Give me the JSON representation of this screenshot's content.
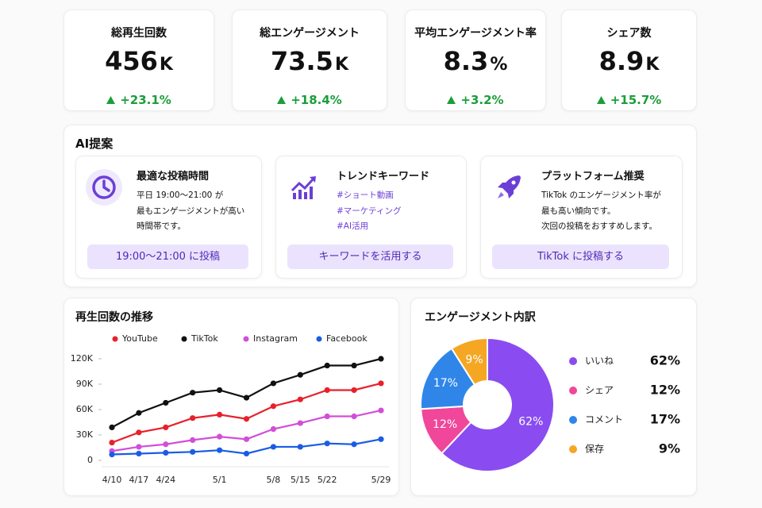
{
  "kpis": [
    {
      "label": "総再生回数",
      "value": "456",
      "unit": "K",
      "change": "+23.1%"
    },
    {
      "label": "総エンゲージメント",
      "value": "73.5",
      "unit": "K",
      "change": "+18.4%"
    },
    {
      "label": "平均エンゲージメント率",
      "value": "8.3",
      "unit": "%",
      "change": "+3.2%"
    },
    {
      "label": "シェア数",
      "value": "8.9",
      "unit": "K",
      "change": "+15.7%"
    }
  ],
  "ai": {
    "title": "AI提案",
    "cards": [
      {
        "title": "最適な投稿時間",
        "lines": [
          "平日 19:00〜21:00 が",
          "最もエンゲージメントが高い",
          "時間帯です。"
        ],
        "button": "19:00〜21:00 に投稿"
      },
      {
        "title": "トレンドキーワード",
        "lines": [
          "#ショート動画",
          "#マーケティング",
          "#AI活用"
        ],
        "button": "キーワードを活用する"
      },
      {
        "title": "プラットフォーム推奨",
        "lines": [
          "TikTok のエンゲージメント率が",
          "最も高い傾向です。",
          "次回の投稿をおすすめします。"
        ],
        "button": "TikTok に投稿する"
      }
    ]
  },
  "chart_data": [
    {
      "type": "line",
      "title": "再生回数の推移",
      "categories": [
        "4/10",
        "4/17",
        "4/24",
        null,
        "5/1",
        null,
        "5/8",
        "5/15",
        "5/22",
        null,
        "5/29"
      ],
      "series": [
        {
          "name": "YouTube",
          "color": "#e8202a",
          "values": [
            21000,
            33000,
            39000,
            50000,
            54000,
            49000,
            64000,
            72000,
            83000,
            83000,
            91000
          ]
        },
        {
          "name": "TikTok",
          "color": "#111111",
          "values": [
            39000,
            56000,
            68000,
            80000,
            83000,
            74000,
            91000,
            101000,
            112000,
            112000,
            120000
          ]
        },
        {
          "name": "Instagram",
          "color": "#d14fd8",
          "values": [
            11000,
            16000,
            19000,
            24000,
            28000,
            25000,
            37000,
            44000,
            52000,
            52000,
            59000
          ]
        },
        {
          "name": "Facebook",
          "color": "#1a5ce6",
          "values": [
            7000,
            8000,
            9000,
            10000,
            12000,
            8000,
            16000,
            16000,
            20000,
            19000,
            25000
          ]
        }
      ],
      "ylim": [
        0,
        120000
      ],
      "yticks": [
        0,
        {
          "value": 30000,
          "label": "30K"
        },
        {
          "value": 60000,
          "label": "60K"
        },
        {
          "value": 90000,
          "label": "90K"
        },
        {
          "value": 120000,
          "label": "120K"
        }
      ]
    },
    {
      "type": "pie",
      "title": "エンゲージメント内訳",
      "categories": [
        "いいね",
        "シェア",
        "コメント",
        "保存"
      ],
      "values": [
        62,
        12,
        17,
        9
      ],
      "value_labels": [
        "62%",
        "12%",
        "17%",
        "9%"
      ],
      "colors": [
        "#8a4cf0",
        "#f0479a",
        "#2f86e8",
        "#f5a623"
      ],
      "donut": true
    }
  ]
}
